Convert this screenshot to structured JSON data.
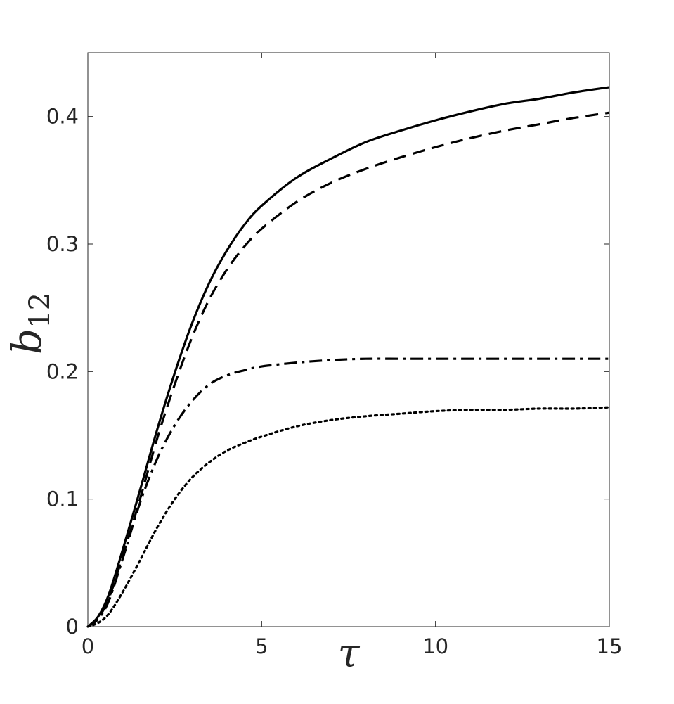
{
  "chart_data": {
    "type": "line",
    "xlabel": "τ",
    "ylabel_main": "b",
    "ylabel_sub": "12",
    "xlim": [
      0,
      15
    ],
    "ylim": [
      0,
      0.45
    ],
    "xticks": [
      0,
      5,
      10,
      15
    ],
    "xtick_labels": [
      "0",
      "5",
      "10",
      "15"
    ],
    "yticks": [
      0,
      0.1,
      0.2,
      0.3,
      0.4
    ],
    "ytick_labels": [
      "0",
      "0.1",
      "0.2",
      "0.3",
      "0.4"
    ],
    "grid": false,
    "series": [
      {
        "style": "solid",
        "x": [
          0,
          0.3,
          0.6,
          1,
          1.5,
          2,
          2.5,
          3,
          3.5,
          4,
          4.5,
          5,
          6,
          7,
          8,
          9,
          10,
          11,
          12,
          13,
          14,
          15
        ],
        "y": [
          0,
          0.008,
          0.025,
          0.06,
          0.107,
          0.155,
          0.199,
          0.238,
          0.27,
          0.295,
          0.315,
          0.33,
          0.352,
          0.367,
          0.38,
          0.389,
          0.397,
          0.404,
          0.41,
          0.414,
          0.419,
          0.423
        ]
      },
      {
        "style": "dashed",
        "x": [
          0,
          0.3,
          0.6,
          1,
          1.5,
          2,
          2.5,
          3,
          3.5,
          4,
          4.5,
          5,
          6,
          7,
          8,
          9,
          10,
          11,
          12,
          13,
          14,
          15
        ],
        "y": [
          0,
          0.007,
          0.022,
          0.055,
          0.1,
          0.148,
          0.19,
          0.227,
          0.257,
          0.28,
          0.298,
          0.312,
          0.333,
          0.348,
          0.359,
          0.368,
          0.376,
          0.383,
          0.389,
          0.394,
          0.399,
          0.403
        ]
      },
      {
        "style": "dashdot",
        "x": [
          0,
          0.3,
          0.6,
          1,
          1.5,
          2,
          2.5,
          3,
          3.5,
          4,
          4.5,
          5,
          6,
          7,
          8,
          9,
          10,
          11,
          12,
          13,
          14,
          15
        ],
        "y": [
          0,
          0.006,
          0.02,
          0.053,
          0.097,
          0.132,
          0.158,
          0.177,
          0.19,
          0.197,
          0.201,
          0.204,
          0.207,
          0.209,
          0.21,
          0.21,
          0.21,
          0.21,
          0.21,
          0.21,
          0.21,
          0.21
        ]
      },
      {
        "style": "dotted",
        "x": [
          0,
          0.3,
          0.6,
          1,
          1.5,
          2,
          2.5,
          3,
          3.5,
          4,
          4.5,
          5,
          6,
          7,
          8,
          9,
          10,
          11,
          12,
          13,
          14,
          15
        ],
        "y": [
          0,
          0.003,
          0.01,
          0.027,
          0.052,
          0.078,
          0.1,
          0.117,
          0.129,
          0.138,
          0.144,
          0.149,
          0.157,
          0.162,
          0.165,
          0.167,
          0.169,
          0.17,
          0.17,
          0.171,
          0.171,
          0.172
        ]
      }
    ]
  }
}
